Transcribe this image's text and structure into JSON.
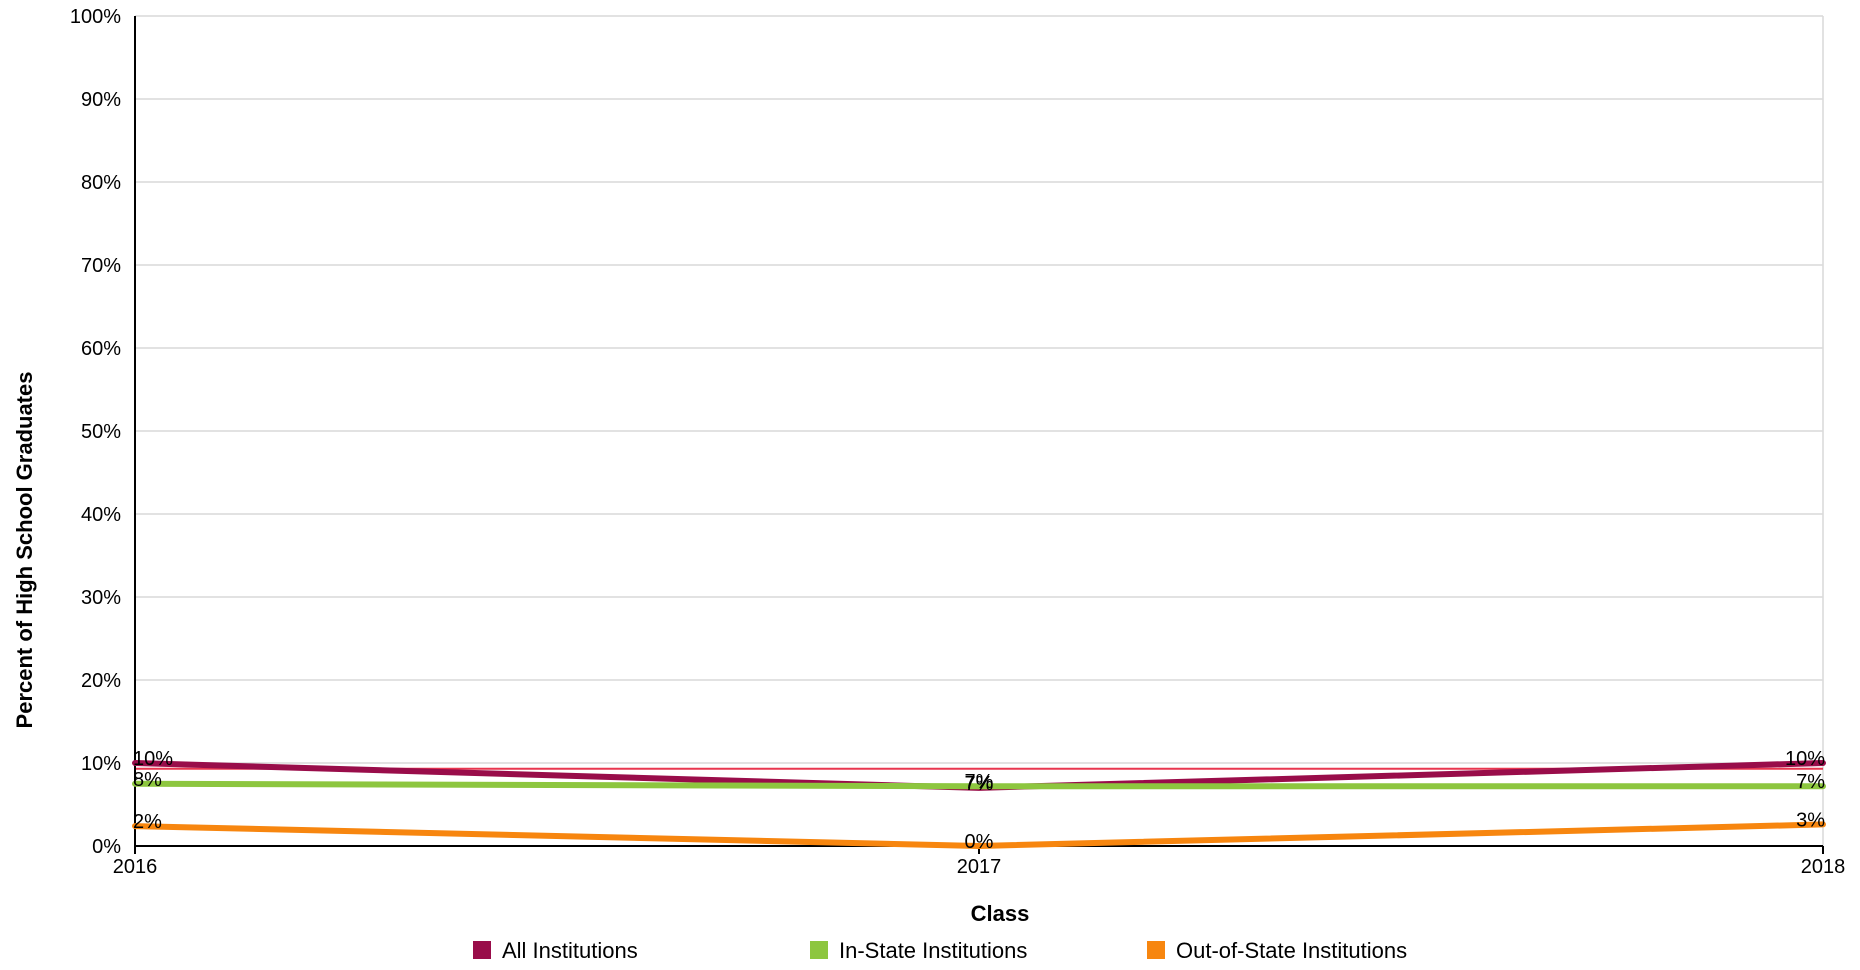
{
  "chart_data": {
    "type": "line",
    "title": "",
    "xlabel": "Class",
    "ylabel": "Percent of High School Graduates",
    "categories": [
      "2016",
      "2017",
      "2018"
    ],
    "ylim": [
      0,
      100
    ],
    "y_ticks": [
      0,
      10,
      20,
      30,
      40,
      50,
      60,
      70,
      80,
      90,
      100
    ],
    "y_tick_labels": [
      "0%",
      "10%",
      "20%",
      "30%",
      "40%",
      "50%",
      "60%",
      "70%",
      "80%",
      "90%",
      "100%"
    ],
    "grid": true,
    "reference_line": {
      "value": 9.3,
      "color": "#e8364f"
    },
    "legend_position": "bottom",
    "series": [
      {
        "name": "All Institutions",
        "color": "#990d4a",
        "values": [
          10,
          7,
          10
        ],
        "labels": [
          "10%",
          "7%",
          "10%"
        ]
      },
      {
        "name": "In-State Institutions",
        "color": "#8dc63f",
        "values": [
          7.5,
          7.2,
          7.2
        ],
        "labels": [
          "8%",
          "7%",
          "7%"
        ]
      },
      {
        "name": "Out-of-State Institutions",
        "color": "#f7860f",
        "values": [
          2.4,
          0,
          2.6
        ],
        "labels": [
          "2%",
          "0%",
          "3%"
        ]
      }
    ]
  }
}
